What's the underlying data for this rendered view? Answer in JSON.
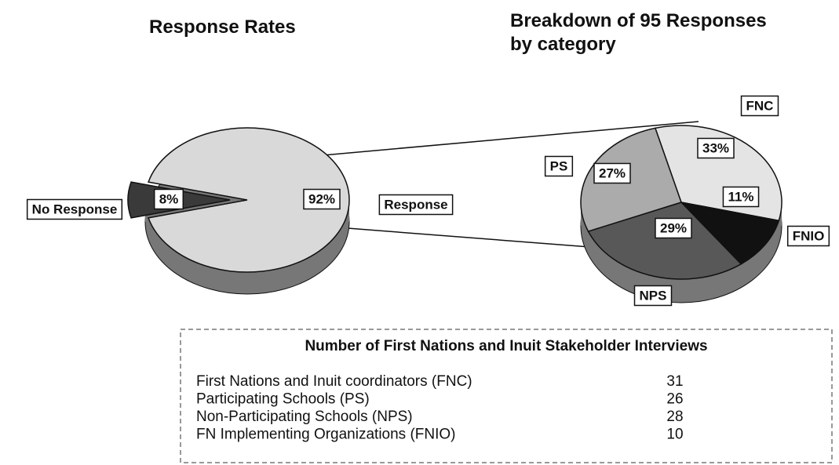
{
  "chart_data": [
    {
      "type": "pie",
      "title": "Response Rates",
      "categories": [
        "No Response",
        "Response"
      ],
      "values": [
        8,
        92
      ],
      "value_labels": [
        "8%",
        "92%"
      ],
      "colors": [
        "#3a3a3a",
        "#d9d9d9"
      ]
    },
    {
      "type": "pie",
      "title": "Breakdown of 95 Responses by category",
      "categories": [
        "FNC",
        "FNIO",
        "NPS",
        "PS"
      ],
      "values": [
        33,
        11,
        29,
        27
      ],
      "value_labels": [
        "33%",
        "11%",
        "29%",
        "27%"
      ],
      "colors": [
        "#e4e4e4",
        "#111111",
        "#585858",
        "#ababab"
      ]
    }
  ],
  "table": {
    "title": "Number of First Nations and Inuit Stakeholder Interviews",
    "rows": [
      [
        "First Nations and Inuit coordinators (FNC)",
        "31"
      ],
      [
        "Participating Schools (PS)",
        "26"
      ],
      [
        "Non-Participating Schools (NPS)",
        "28"
      ],
      [
        "FN Implementing Organizations (FNIO)",
        "10"
      ]
    ]
  }
}
